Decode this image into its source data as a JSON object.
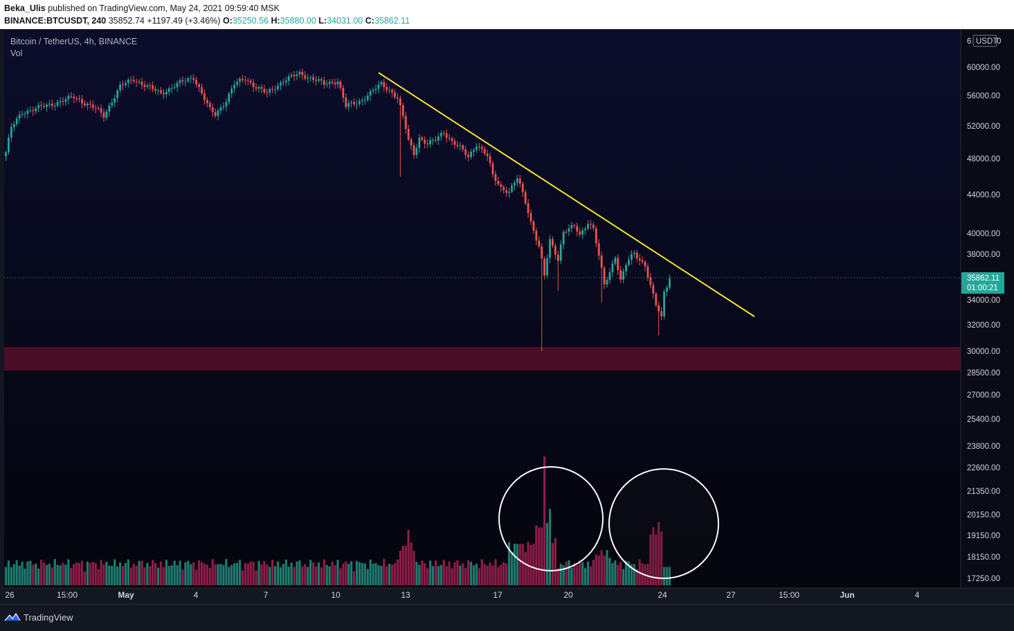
{
  "header": {
    "author": "Beka_Ulis",
    "published_text": "published on TradingView.com, May 24, 2021 09:59:40 MSK",
    "symbol": "BINANCE:BTCUSDT, 240",
    "price": "35852.74",
    "change": "+1197.49 (+3.46%)",
    "o_label": "O:",
    "o_value": "35250.56",
    "h_label": "H:",
    "h_value": "35880.00",
    "l_label": "L:",
    "l_value": "34031.00",
    "c_label": "C:",
    "c_value": "35862.11"
  },
  "legend": {
    "title": "Bitcoin / TetherUS, 4h, BINANCE",
    "volume_label": "Vol"
  },
  "footer": {
    "brand": "TradingView"
  },
  "colors": {
    "background": "#0a0b1a",
    "up": "#26a69a",
    "down": "#ef5350",
    "vol_up": "#1f7a6f",
    "vol_down": "#8c1d47",
    "trendline": "#f5e52c",
    "support_zone": "#4a0e26",
    "price_label_bg": "#26a69a"
  },
  "chart_data": {
    "type": "candlestick",
    "title": "Bitcoin / TetherUS, 4h, BINANCE",
    "currency": "USDT",
    "y_scale": "log",
    "ylim": [
      16500,
      61500
    ],
    "y_ticks": [
      "60000.00",
      "56000.00",
      "52000.00",
      "48000.00",
      "44000.00",
      "40000.00",
      "38000.00",
      "34000.00",
      "32000.00",
      "30000.00",
      "28500.00",
      "27000.00",
      "25400.00",
      "23800.00",
      "22600.00",
      "21350.00",
      "20150.00",
      "19150.00",
      "18150.00",
      "17250.00"
    ],
    "x_ticks": [
      "26",
      "15:00",
      "May",
      "4",
      "7",
      "10",
      "13",
      "17",
      "20",
      "24",
      "27",
      "15:00",
      "Jun",
      "4"
    ],
    "x_tick_bold": [
      "May",
      "Jun"
    ],
    "current_price": "35862.11",
    "countdown": "01:00:21",
    "axis_top_label": "USDT",
    "axis_top_prefix": "6",
    "axis_top_suffix": "0",
    "anchors_close": [
      [
        0,
        48800
      ],
      [
        2,
        51800
      ],
      [
        6,
        53800
      ],
      [
        11,
        54300
      ],
      [
        18,
        55000
      ],
      [
        25,
        55800
      ],
      [
        33,
        54300
      ],
      [
        36,
        53300
      ],
      [
        42,
        57300
      ],
      [
        47,
        58300
      ],
      [
        53,
        57100
      ],
      [
        57,
        56300
      ],
      [
        63,
        57600
      ],
      [
        69,
        58600
      ],
      [
        72,
        56300
      ],
      [
        75,
        54100
      ],
      [
        77,
        53500
      ],
      [
        81,
        55400
      ],
      [
        84,
        57600
      ],
      [
        88,
        58400
      ],
      [
        92,
        57200
      ],
      [
        96,
        56300
      ],
      [
        102,
        58100
      ],
      [
        108,
        59100
      ],
      [
        114,
        58200
      ],
      [
        117,
        57600
      ],
      [
        122,
        58100
      ],
      [
        125,
        54600
      ],
      [
        130,
        55200
      ],
      [
        134,
        56400
      ],
      [
        138,
        57600
      ],
      [
        142,
        56500
      ],
      [
        144,
        55700
      ],
      [
        146,
        53200
      ],
      [
        148,
        50200
      ],
      [
        150,
        48600
      ],
      [
        152,
        50600
      ],
      [
        155,
        49800
      ],
      [
        158,
        50300
      ],
      [
        161,
        51300
      ],
      [
        164,
        50100
      ],
      [
        167,
        49300
      ],
      [
        170,
        48200
      ],
      [
        173,
        49800
      ],
      [
        177,
        48300
      ],
      [
        179,
        46100
      ],
      [
        182,
        44800
      ],
      [
        185,
        44300
      ],
      [
        188,
        45800
      ],
      [
        191,
        43300
      ],
      [
        193,
        41200
      ],
      [
        196,
        38700
      ],
      [
        198,
        36100
      ],
      [
        200,
        39300
      ],
      [
        203,
        37600
      ],
      [
        205,
        40200
      ],
      [
        209,
        40700
      ],
      [
        211,
        39800
      ],
      [
        214,
        41200
      ],
      [
        216,
        40500
      ],
      [
        218,
        37800
      ],
      [
        220,
        35300
      ],
      [
        222,
        36400
      ],
      [
        224,
        37900
      ],
      [
        226,
        35700
      ],
      [
        228,
        37100
      ],
      [
        231,
        38100
      ],
      [
        233,
        37500
      ],
      [
        235,
        37100
      ],
      [
        237,
        35200
      ],
      [
        239,
        33600
      ],
      [
        241,
        32500
      ],
      [
        242,
        34700
      ],
      [
        244,
        35862
      ]
    ],
    "volume_ylim": [
      0,
      100
    ],
    "volume_note": "relative volume bars, tallest spike near May 19",
    "annotations": [
      {
        "type": "trendline",
        "from": {
          "index": 144,
          "price": 59000
        },
        "to": {
          "index": 276,
          "price": 32600
        }
      },
      {
        "type": "support_zone",
        "from_price": 28600,
        "to_price": 30200
      },
      {
        "type": "circle",
        "around": "volume spike near May 19"
      },
      {
        "type": "circle",
        "around": "volume near May 23-24"
      }
    ]
  }
}
